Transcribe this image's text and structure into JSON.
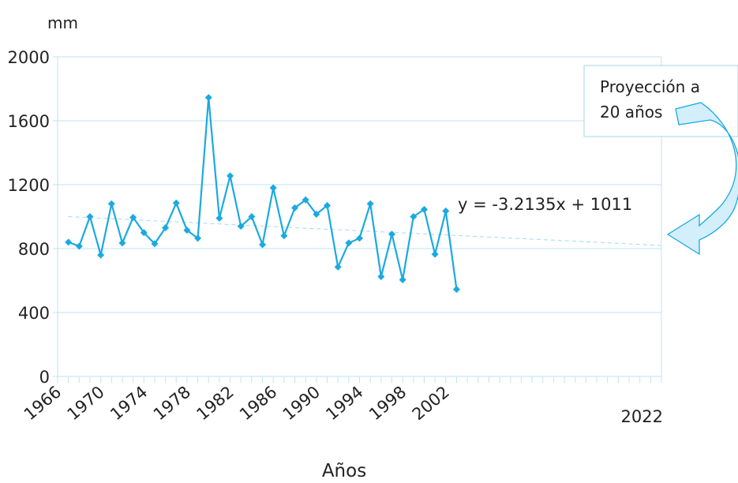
{
  "chart_data": {
    "type": "line",
    "title": "",
    "ylabel": "mm",
    "xlabel": "Años",
    "ylim": [
      0,
      2000
    ],
    "yticks": [
      0,
      400,
      800,
      1200,
      1600,
      2000
    ],
    "xlim": [
      1966,
      2022
    ],
    "xtick_labels": [
      "1966",
      "1970",
      "1974",
      "1978",
      "1982",
      "1986",
      "1990",
      "1994",
      "1998",
      "2002"
    ],
    "x_end_label": "2022",
    "grid": true,
    "series": [
      {
        "color": "#1ba9e1",
        "marker": "diamond",
        "x": [
          1967,
          1968,
          1969,
          1970,
          1971,
          1972,
          1973,
          1974,
          1975,
          1976,
          1977,
          1978,
          1979,
          1980,
          1981,
          1982,
          1983,
          1984,
          1985,
          1986,
          1987,
          1988,
          1989,
          1990,
          1991,
          1992,
          1993,
          1994,
          1995,
          1996,
          1997,
          1998,
          1999,
          2000,
          2001,
          2002,
          2003
        ],
        "y": [
          840,
          815,
          1000,
          760,
          1080,
          835,
          995,
          900,
          830,
          930,
          1085,
          915,
          865,
          1745,
          990,
          1255,
          940,
          1000,
          825,
          1180,
          880,
          1055,
          1105,
          1015,
          1070,
          685,
          835,
          865,
          1080,
          625,
          890,
          605,
          1000,
          1045,
          765,
          1035,
          545
        ]
      }
    ],
    "trendline": {
      "x_start": 1967,
      "x_end": 2022,
      "y_start": 1000,
      "y_end": 820,
      "color": "#9fdaf2",
      "equation": "y = -3.2135x + 1011"
    },
    "annotation": {
      "line1": "Proyección a",
      "line2": "20 años",
      "arrow_color": "#1ba9e1",
      "arrow_fill": "#d3effb"
    }
  }
}
